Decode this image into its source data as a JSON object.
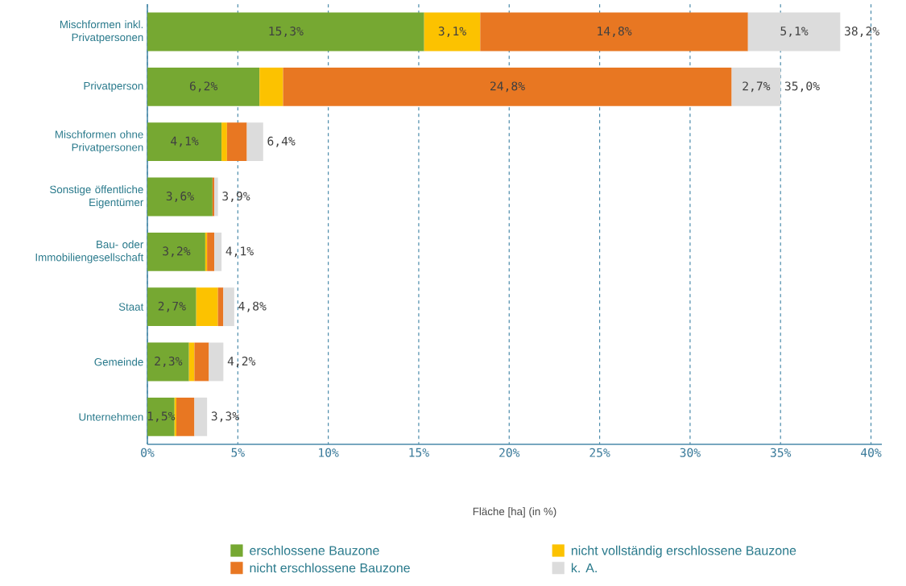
{
  "chart_data": {
    "type": "bar",
    "orientation": "horizontal",
    "stacked": true,
    "categories": [
      "Mischformen inkl. Privatpersonen",
      "Privatperson",
      "Mischformen ohne Privatpersonen",
      "Sonstige öffentliche Eigentümer",
      "Bau- oder Immobiliengesellschaft",
      "Staat",
      "Gemeinde",
      "Unternehmen"
    ],
    "series": [
      {
        "name": "erschlossene Bauzone",
        "color": "#76a832",
        "values": [
          15.3,
          6.2,
          4.1,
          3.6,
          3.2,
          2.7,
          2.3,
          1.5
        ],
        "value_labels": [
          "15,3%",
          "6,2%",
          "4,1%",
          "3,6%",
          "3,2%",
          "2,7%",
          "2,3%",
          "1,5%"
        ]
      },
      {
        "name": "nicht vollständig erschlossene Bauzone",
        "color": "#fcc200",
        "values": [
          3.1,
          1.3,
          0.3,
          null,
          0.1,
          1.2,
          0.3,
          0.1
        ],
        "value_labels": [
          "3,1%",
          null,
          null,
          null,
          null,
          null,
          null,
          null
        ]
      },
      {
        "name": "nicht erschlossene Bauzone",
        "color": "#e87722",
        "values": [
          14.8,
          24.8,
          1.1,
          0.1,
          0.4,
          0.3,
          0.8,
          1.0
        ],
        "value_labels": [
          "14,8%",
          "24,8%",
          null,
          null,
          null,
          null,
          null,
          null
        ]
      },
      {
        "name": "k. A.",
        "color": "#dcdcdc",
        "values": [
          5.1,
          2.7,
          0.9,
          0.2,
          0.4,
          0.6,
          0.8,
          0.7
        ],
        "value_labels": [
          "5,1%",
          "2,7%",
          null,
          null,
          null,
          null,
          null,
          null
        ]
      }
    ],
    "totals": [
      "38,2%",
      "35,0%",
      "6,4%",
      "3,9%",
      "4,1%",
      "4,8%",
      "4,2%",
      "3,3%"
    ],
    "xlabel": "Fläche [ha] (in %)",
    "xlim": [
      0,
      40.6
    ],
    "xticks": [
      {
        "value": 0,
        "label": "0%"
      },
      {
        "value": 5,
        "label": "5%"
      },
      {
        "value": 10,
        "label": "10%"
      },
      {
        "value": 15,
        "label": "15%"
      },
      {
        "value": 20,
        "label": "20%"
      },
      {
        "value": 25,
        "label": "25%"
      },
      {
        "value": 30,
        "label": "30%"
      },
      {
        "value": 35,
        "label": "35%"
      },
      {
        "value": 40,
        "label": "40%"
      }
    ],
    "grid": "x",
    "legend": "bottom"
  }
}
